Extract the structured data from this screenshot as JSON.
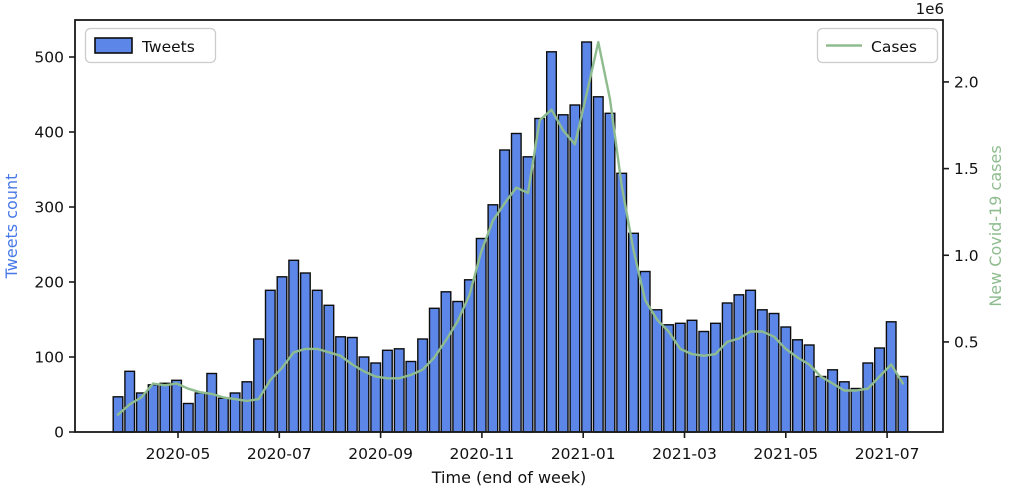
{
  "colors": {
    "bar_fill": "#5c87e8",
    "bar_edge": "#0d0d0d",
    "line": "#8fbc8f",
    "left_label": "#4678e8",
    "right_label": "#8fbc8f",
    "tick_text": "#111111",
    "spine": "#1a1a1a",
    "legend_border": "#cccccc",
    "background": "#ffffff"
  },
  "legend": {
    "tweets_label": "Tweets",
    "cases_label": "Cases"
  },
  "axes": {
    "xlabel": "Time (end of week)",
    "ylabel_left": "Tweets count",
    "ylabel_right": "New Covid-19 cases",
    "offset_text": "1e6",
    "x_tick_labels": [
      "2020-05",
      "2020-07",
      "2020-09",
      "2020-11",
      "2021-01",
      "2021-03",
      "2021-05",
      "2021-07"
    ],
    "y_left_tick_labels": [
      "0",
      "100",
      "200",
      "300",
      "400",
      "500"
    ],
    "y_right_tick_labels": [
      "0.5",
      "1.0",
      "1.5",
      "2.0"
    ]
  },
  "chart_data": {
    "type": "bar",
    "title": "",
    "xlabel": "Time (end of week)",
    "ylabel": "Tweets count",
    "ylabel_right": "New Covid-19 cases",
    "right_axis_multiplier": "1e6",
    "ylim_left": [
      0,
      549
    ],
    "ylim_right_millions": [
      -0.02,
      2.36
    ],
    "grid": false,
    "legend_position": "top-left and top-right",
    "categories": [
      "2020-03-29",
      "2020-04-05",
      "2020-04-12",
      "2020-04-19",
      "2020-04-26",
      "2020-05-03",
      "2020-05-10",
      "2020-05-17",
      "2020-05-24",
      "2020-05-31",
      "2020-06-07",
      "2020-06-14",
      "2020-06-21",
      "2020-06-28",
      "2020-07-05",
      "2020-07-12",
      "2020-07-19",
      "2020-07-26",
      "2020-08-02",
      "2020-08-09",
      "2020-08-16",
      "2020-08-23",
      "2020-08-30",
      "2020-09-06",
      "2020-09-13",
      "2020-09-20",
      "2020-09-27",
      "2020-10-04",
      "2020-10-11",
      "2020-10-18",
      "2020-10-25",
      "2020-11-01",
      "2020-11-08",
      "2020-11-15",
      "2020-11-22",
      "2020-11-29",
      "2020-12-06",
      "2020-12-13",
      "2020-12-20",
      "2020-12-27",
      "2021-01-03",
      "2021-01-10",
      "2021-01-17",
      "2021-01-24",
      "2021-01-31",
      "2021-02-07",
      "2021-02-14",
      "2021-02-21",
      "2021-02-28",
      "2021-03-07",
      "2021-03-14",
      "2021-03-21",
      "2021-03-28",
      "2021-04-04",
      "2021-04-11",
      "2021-04-18",
      "2021-04-25",
      "2021-05-02",
      "2021-05-09",
      "2021-05-16",
      "2021-05-23",
      "2021-05-30",
      "2021-06-06",
      "2021-06-13",
      "2021-06-20",
      "2021-06-27",
      "2021-07-04",
      "2021-07-11"
    ],
    "series": [
      {
        "name": "Tweets",
        "type": "bar",
        "axis": "left",
        "values": [
          47,
          81,
          52,
          63,
          65,
          69,
          38,
          52,
          78,
          45,
          52,
          67,
          124,
          189,
          207,
          229,
          212,
          189,
          169,
          127,
          126,
          100,
          92,
          109,
          111,
          94,
          124,
          165,
          187,
          174,
          203,
          258,
          303,
          376,
          398,
          367,
          418,
          507,
          423,
          436,
          520,
          447,
          425,
          345,
          265,
          214,
          163,
          143,
          145,
          149,
          134,
          145,
          172,
          183,
          189,
          163,
          158,
          140,
          123,
          116,
          74,
          83,
          67,
          58,
          92,
          112,
          147,
          74
        ]
      },
      {
        "name": "Cases",
        "type": "line",
        "axis": "right",
        "unit": "millions of new Covid-19 cases",
        "values": [
          0.08,
          0.14,
          0.18,
          0.26,
          0.25,
          0.26,
          0.23,
          0.21,
          0.2,
          0.18,
          0.17,
          0.16,
          0.17,
          0.28,
          0.35,
          0.44,
          0.46,
          0.46,
          0.44,
          0.42,
          0.37,
          0.33,
          0.3,
          0.29,
          0.29,
          0.31,
          0.34,
          0.41,
          0.51,
          0.62,
          0.77,
          1.02,
          1.2,
          1.3,
          1.39,
          1.36,
          1.78,
          1.84,
          1.72,
          1.64,
          1.93,
          2.23,
          1.9,
          1.4,
          1.03,
          0.74,
          0.63,
          0.56,
          0.46,
          0.43,
          0.42,
          0.43,
          0.5,
          0.52,
          0.56,
          0.56,
          0.53,
          0.46,
          0.41,
          0.37,
          0.3,
          0.26,
          0.22,
          0.22,
          0.23,
          0.3,
          0.37,
          0.26
        ]
      }
    ]
  }
}
